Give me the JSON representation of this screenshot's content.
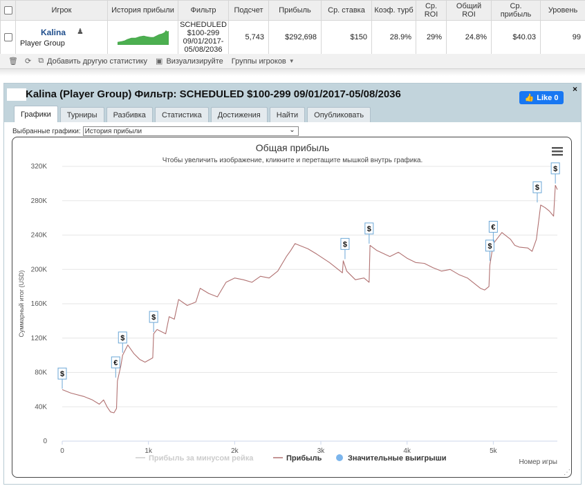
{
  "table": {
    "headers": [
      "",
      "Игрок",
      "История прибыли",
      "Фильтр",
      "Подсчет",
      "Прибыль",
      "Ср. ставка",
      "Коэф. турб",
      "Ср. ROI",
      "Общий ROI",
      "Ср. прибыль",
      "Уровень"
    ],
    "row": {
      "player_name": "Kalina",
      "player_group": "Player Group",
      "filter_lines": [
        "SCHEDULED",
        "$100-299",
        "09/01/2017-",
        "05/08/2036"
      ],
      "count": "5,743",
      "profit": "$292,698",
      "avg_stake": "$150",
      "turbo_ratio": "28.9%",
      "avg_roi": "29%",
      "total_roi": "24.8%",
      "avg_profit": "$40.03",
      "level": "99"
    }
  },
  "toolbar": {
    "icons": [
      "trash-icon",
      "refresh-icon"
    ],
    "add_stat": "Добавить другую статистику",
    "visualize": "Визуализируйте",
    "groups": "Группы игроков"
  },
  "panel": {
    "title": "Kalina (Player Group) Фильтр: SCHEDULED $100-299 09/01/2017-05/08/2036",
    "close": "×",
    "like": "Like 0",
    "tabs": [
      "Графики",
      "Турниры",
      "Разбивка",
      "Статистика",
      "Достижения",
      "Найти",
      "Опубликовать"
    ],
    "active_tab": 0,
    "selector_label": "Выбранные графики:",
    "selector_value": "История прибыли"
  },
  "colors": {
    "line": "#b07070",
    "rake_line": "#cccccc",
    "marker": "#7cb5ec",
    "accent": "#1f4e8c",
    "mini_chart": "#4caf50"
  },
  "chart_data": {
    "type": "line",
    "title": "Общая прибыль",
    "subtitle": "Чтобы увеличить изображение, кликните и перетащите мышкой внутрь графика.",
    "xlabel": "Номер игры",
    "ylabel": "Суммарный итог (USD)",
    "xlim": [
      0,
      5743
    ],
    "ylim": [
      0,
      320000
    ],
    "x_ticks": [
      0,
      1000,
      2000,
      3000,
      4000,
      5000
    ],
    "x_tick_labels": [
      "0",
      "1k",
      "2k",
      "3k",
      "4k",
      "5k"
    ],
    "y_ticks": [
      0,
      40000,
      80000,
      120000,
      160000,
      200000,
      240000,
      280000,
      320000
    ],
    "y_tick_labels": [
      "0",
      "40K",
      "80K",
      "120K",
      "160K",
      "200K",
      "240K",
      "280K",
      "320K"
    ],
    "legend": [
      "Прибыль за минусом рейка",
      "Прибыль",
      "Значительные выигрыши"
    ],
    "legend_position": "bottom",
    "series": [
      {
        "name": "Прибыль",
        "x": [
          0,
          100,
          250,
          350,
          430,
          480,
          520,
          560,
          600,
          630,
          640,
          680,
          700,
          760,
          830,
          900,
          960,
          1050,
          1060,
          1100,
          1200,
          1240,
          1300,
          1350,
          1450,
          1550,
          1600,
          1700,
          1800,
          1900,
          2000,
          2100,
          2200,
          2300,
          2400,
          2500,
          2600,
          2650,
          2700,
          2850,
          2950,
          3100,
          3250,
          3260,
          3300,
          3400,
          3500,
          3560,
          3570,
          3650,
          3800,
          3900,
          4000,
          4100,
          4200,
          4300,
          4400,
          4500,
          4600,
          4700,
          4800,
          4850,
          4900,
          4950,
          4960,
          5000,
          5100,
          5200,
          5250,
          5300,
          5400,
          5450,
          5500,
          5550,
          5600,
          5650,
          5700,
          5720,
          5743
        ],
        "values": [
          60000,
          56000,
          52000,
          48000,
          43000,
          48000,
          40000,
          34000,
          33000,
          38000,
          70000,
          88000,
          100000,
          112000,
          102000,
          95000,
          92000,
          97000,
          125000,
          130000,
          125000,
          145000,
          142000,
          165000,
          158000,
          162000,
          178000,
          172000,
          168000,
          185000,
          190000,
          188000,
          185000,
          192000,
          190000,
          198000,
          215000,
          222000,
          230000,
          224000,
          218000,
          208000,
          196000,
          210000,
          198000,
          188000,
          190000,
          185000,
          228000,
          222000,
          215000,
          220000,
          213000,
          208000,
          207000,
          202000,
          198000,
          200000,
          194000,
          190000,
          182000,
          178000,
          176000,
          180000,
          205000,
          230000,
          243000,
          235000,
          228000,
          226000,
          225000,
          221000,
          235000,
          275000,
          272000,
          268000,
          262000,
          298000,
          293000
        ]
      }
    ],
    "markers": [
      {
        "x": 0,
        "y": 61000,
        "label": "$"
      },
      {
        "x": 620,
        "y": 74000,
        "label": "€"
      },
      {
        "x": 700,
        "y": 103000,
        "label": "$"
      },
      {
        "x": 1060,
        "y": 127000,
        "label": "$"
      },
      {
        "x": 3280,
        "y": 212000,
        "label": "$"
      },
      {
        "x": 3560,
        "y": 230000,
        "label": "$"
      },
      {
        "x": 4960,
        "y": 210000,
        "label": "$"
      },
      {
        "x": 5000,
        "y": 232000,
        "label": "€"
      },
      {
        "x": 5510,
        "y": 278000,
        "label": "$"
      },
      {
        "x": 5720,
        "y": 300000,
        "label": "$"
      }
    ]
  }
}
